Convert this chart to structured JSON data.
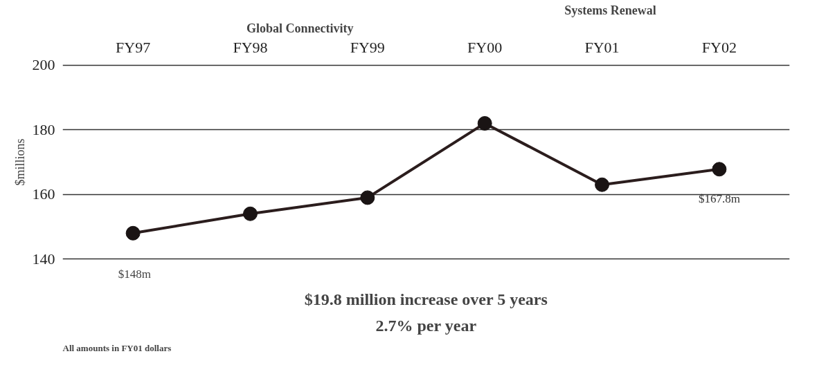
{
  "chart_data": {
    "type": "line",
    "categories": [
      "FY97",
      "FY98",
      "FY99",
      "FY00",
      "FY01",
      "FY02"
    ],
    "series": [
      {
        "color": "#2b1d1d",
        "values": [
          148,
          154,
          159,
          182,
          163,
          167.8
        ],
        "value_labels": [
          "$148m",
          null,
          null,
          null,
          null,
          "$167.8m"
        ]
      }
    ],
    "ylabel": "$millions",
    "ylim": [
      140,
      200
    ],
    "yticks": [
      140,
      160,
      180,
      200
    ],
    "grid": "y",
    "marker": "circle",
    "line_style": "solid",
    "annotations": [
      "Global Connectivity",
      "Systems Renewal",
      "$19.8 million increase over 5 years",
      "2.7% per year",
      "All amounts in FY01 dollars"
    ]
  }
}
